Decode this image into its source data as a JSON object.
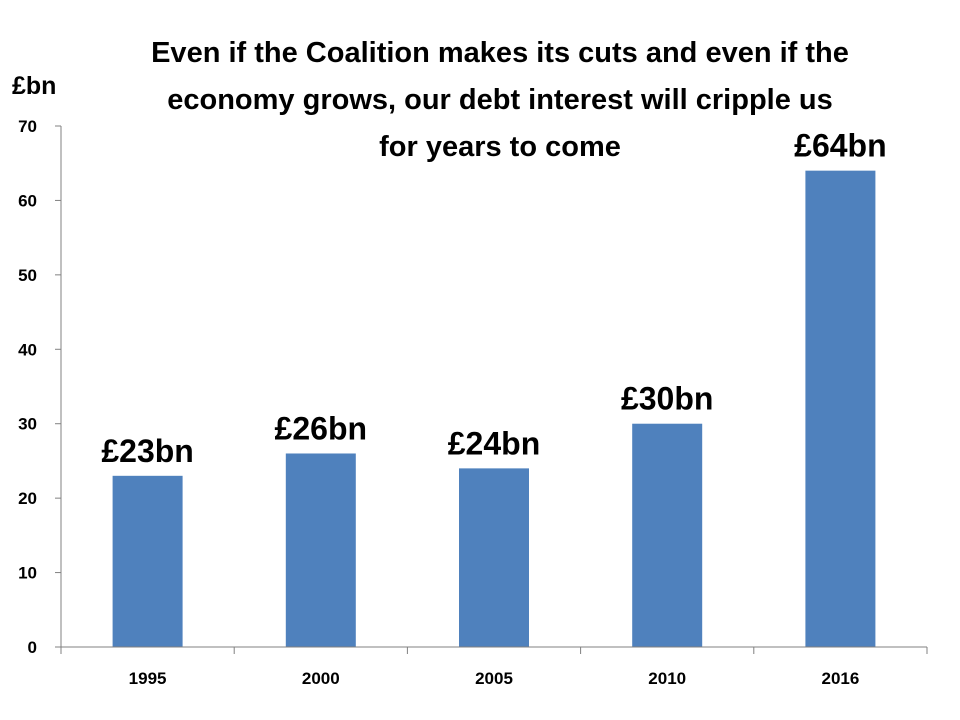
{
  "chart_data": {
    "type": "bar",
    "title_lines": [
      "Even if the Coalition makes its cuts and even if the",
      "economy grows, our debt interest will cripple us",
      "for  years to come"
    ],
    "ylabel": "£bn",
    "xlabel": "",
    "categories": [
      "1995",
      "2000",
      "2005",
      "2010",
      "2016"
    ],
    "values": [
      23,
      26,
      24,
      30,
      64
    ],
    "data_labels": [
      "£23bn",
      "£26bn",
      "£24bn",
      "£30bn",
      "£64bn"
    ],
    "ylim": [
      0,
      70
    ],
    "yticks": [
      0,
      10,
      20,
      30,
      40,
      50,
      60,
      70
    ],
    "grid": false,
    "legend": "none",
    "bar_color": "#4F81BD"
  }
}
